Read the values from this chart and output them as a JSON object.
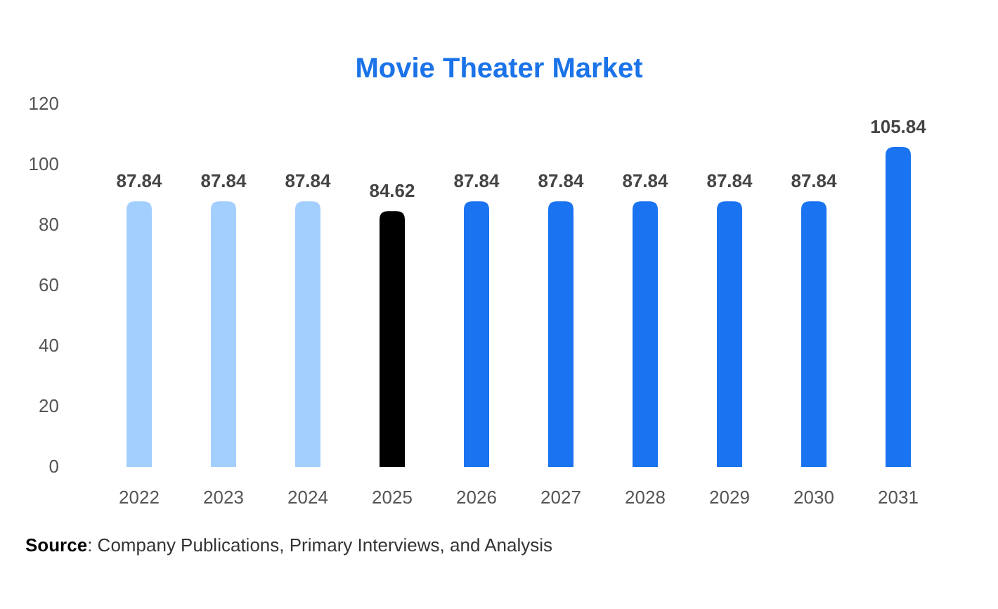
{
  "chart_data": {
    "type": "bar",
    "title": "Movie Theater Market",
    "categories": [
      "2022",
      "2023",
      "2024",
      "2025",
      "2026",
      "2027",
      "2028",
      "2029",
      "2030",
      "2031"
    ],
    "values": [
      87.84,
      87.84,
      87.84,
      84.62,
      87.84,
      87.84,
      87.84,
      87.84,
      87.84,
      105.84
    ],
    "colors": [
      "#a3cffe",
      "#a3cffe",
      "#a3cffe",
      "#000000",
      "#1a73f0",
      "#1a73f0",
      "#1a73f0",
      "#1a73f0",
      "#1a73f0",
      "#1a73f0"
    ],
    "ylim": [
      0,
      120
    ],
    "yticks": [
      0,
      20,
      40,
      60,
      80,
      100,
      120
    ],
    "data_labels": true,
    "annotations": [
      "Source: Company Publications, Primary Interviews, and Analysis"
    ]
  }
}
